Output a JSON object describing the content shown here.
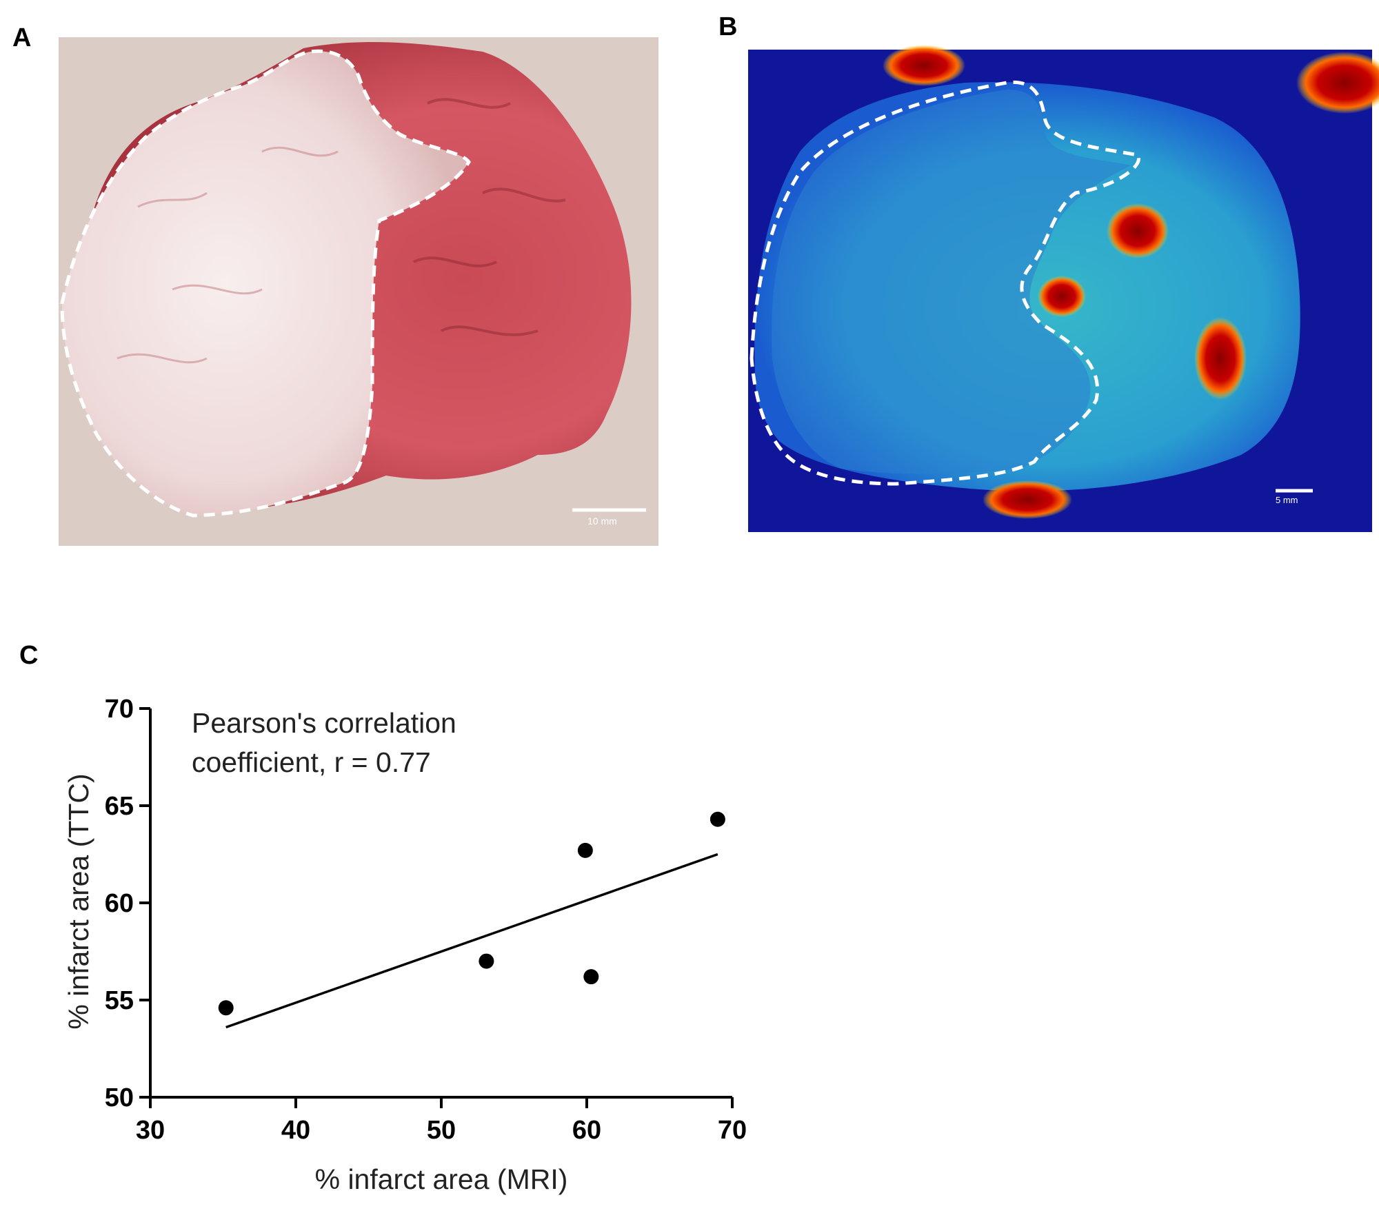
{
  "panels": {
    "a": {
      "label": "A",
      "scale_bar": "10 mm"
    },
    "b": {
      "label": "B",
      "scale_bar": "5 mm"
    },
    "c": {
      "label": "C"
    }
  },
  "chart_data": {
    "type": "scatter",
    "annotation": [
      "Pearson's correlation",
      "coefficient, r = 0.77"
    ],
    "xlabel": "% infarct area (MRI)",
    "ylabel": "% infarct area (TTC)",
    "xlim": [
      30,
      70
    ],
    "ylim": [
      50,
      70
    ],
    "xticks": [
      30,
      40,
      50,
      60,
      70
    ],
    "yticks": [
      50,
      55,
      60,
      65,
      70
    ],
    "points": [
      {
        "x": 35.2,
        "y": 54.6
      },
      {
        "x": 53.1,
        "y": 57.0
      },
      {
        "x": 59.9,
        "y": 62.7
      },
      {
        "x": 60.3,
        "y": 56.2
      },
      {
        "x": 69.0,
        "y": 64.3
      }
    ],
    "fit_line": {
      "x": [
        35.2,
        69.0
      ],
      "y": [
        53.6,
        62.5
      ]
    },
    "colors": {
      "points": "#000000",
      "line": "#000000"
    }
  }
}
